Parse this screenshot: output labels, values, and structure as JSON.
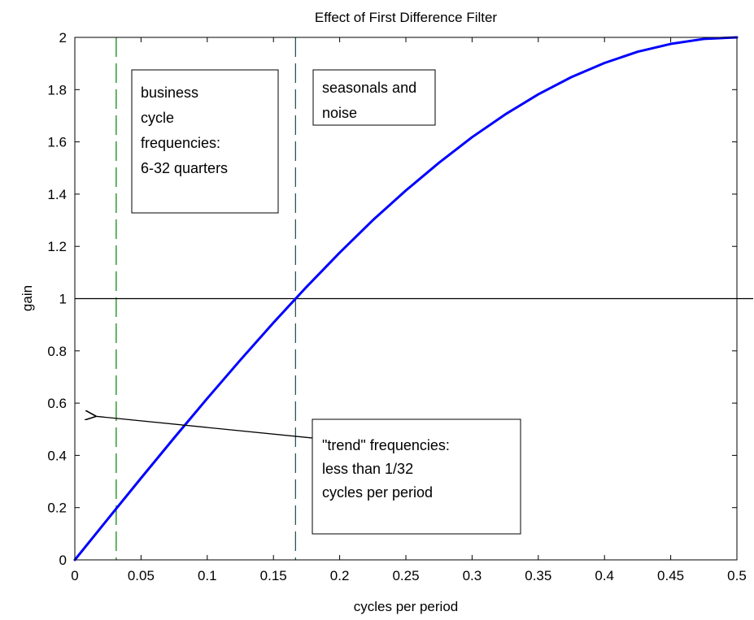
{
  "chart_data": {
    "type": "line",
    "title": "Effect of First Difference Filter",
    "xlabel": "cycles per period",
    "ylabel": "gain",
    "xlim": [
      0,
      0.5
    ],
    "ylim": [
      0,
      2
    ],
    "grid": false,
    "x_ticks": [
      0,
      0.05,
      0.1,
      0.15,
      0.2,
      0.25,
      0.3,
      0.35,
      0.4,
      0.45,
      0.5
    ],
    "y_ticks": [
      0,
      0.2,
      0.4,
      0.6,
      0.8,
      1,
      1.2,
      1.4,
      1.6,
      1.8,
      2
    ],
    "x_tick_labels": [
      "0",
      "0.05",
      "0.1",
      "0.15",
      "0.2",
      "0.25",
      "0.3",
      "0.35",
      "0.4",
      "0.45",
      "0.5"
    ],
    "y_tick_labels": [
      "0",
      "0.2",
      "0.4",
      "0.6",
      "0.8",
      "1",
      "1.2",
      "1.4",
      "1.6",
      "1.8",
      "2"
    ],
    "series": [
      {
        "color": "#0000ff",
        "function": "2*sin(pi*x)",
        "x": [
          0,
          0.025,
          0.05,
          0.075,
          0.1,
          0.125,
          0.15,
          0.175,
          0.2,
          0.225,
          0.25,
          0.275,
          0.3,
          0.325,
          0.35,
          0.375,
          0.4,
          0.425,
          0.45,
          0.475,
          0.5
        ],
        "y": [
          0,
          0.157,
          0.313,
          0.467,
          0.618,
          0.765,
          0.908,
          1.045,
          1.176,
          1.3,
          1.414,
          1.52,
          1.618,
          1.705,
          1.782,
          1.848,
          1.902,
          1.945,
          1.975,
          1.994,
          2
        ]
      }
    ],
    "reference_lines": {
      "horizontal": [
        {
          "y": 1,
          "color": "#000000",
          "style": "solid"
        }
      ],
      "vertical": [
        {
          "x": 0.03125,
          "color": "#008000",
          "style": "dashed"
        },
        {
          "x": 0.16667,
          "color": "#1a4a4a",
          "style": "dashed"
        }
      ]
    },
    "annotations": [
      {
        "lines": [
          "business",
          "cycle",
          "frequencies:",
          "6-32 quarters"
        ]
      },
      {
        "lines": [
          "seasonals and",
          "noise"
        ]
      },
      {
        "lines": [
          "\"trend\" frequencies:",
          "less than 1/32",
          "cycles per period"
        ],
        "arrow_to": {
          "x": 0.015,
          "y": 0.55
        }
      }
    ]
  }
}
